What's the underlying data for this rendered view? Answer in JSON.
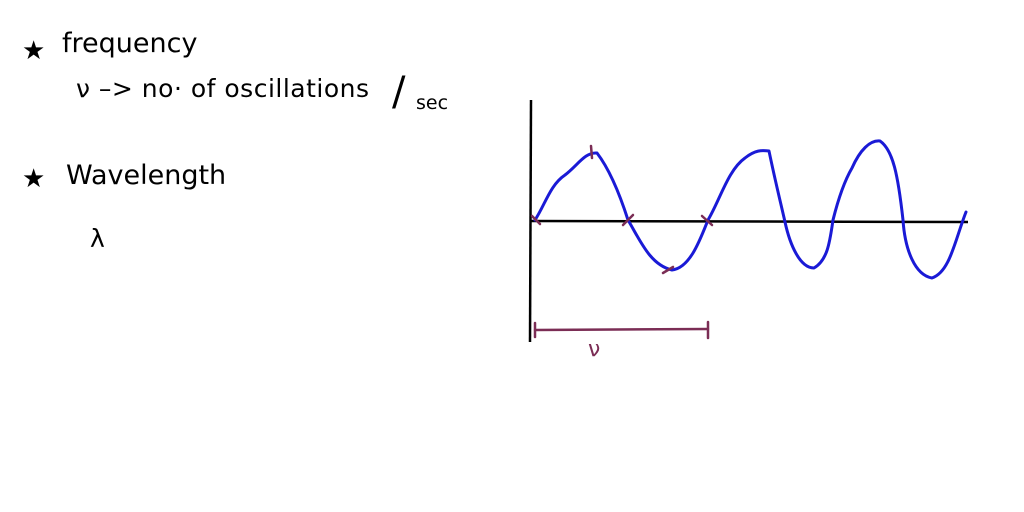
{
  "notes": {
    "bullet_symbol": "★",
    "frequency": {
      "heading": "frequency",
      "definition": "ν –> no· of oscillations",
      "per_slash": "/",
      "per_unit": "sec"
    },
    "wavelength": {
      "heading": "Wavelength",
      "symbol": "λ"
    }
  },
  "diagram": {
    "wave_color": "#1a1ad6",
    "marker_color": "#7b2d55",
    "axis_color": "#000000",
    "period_label": "ν"
  }
}
